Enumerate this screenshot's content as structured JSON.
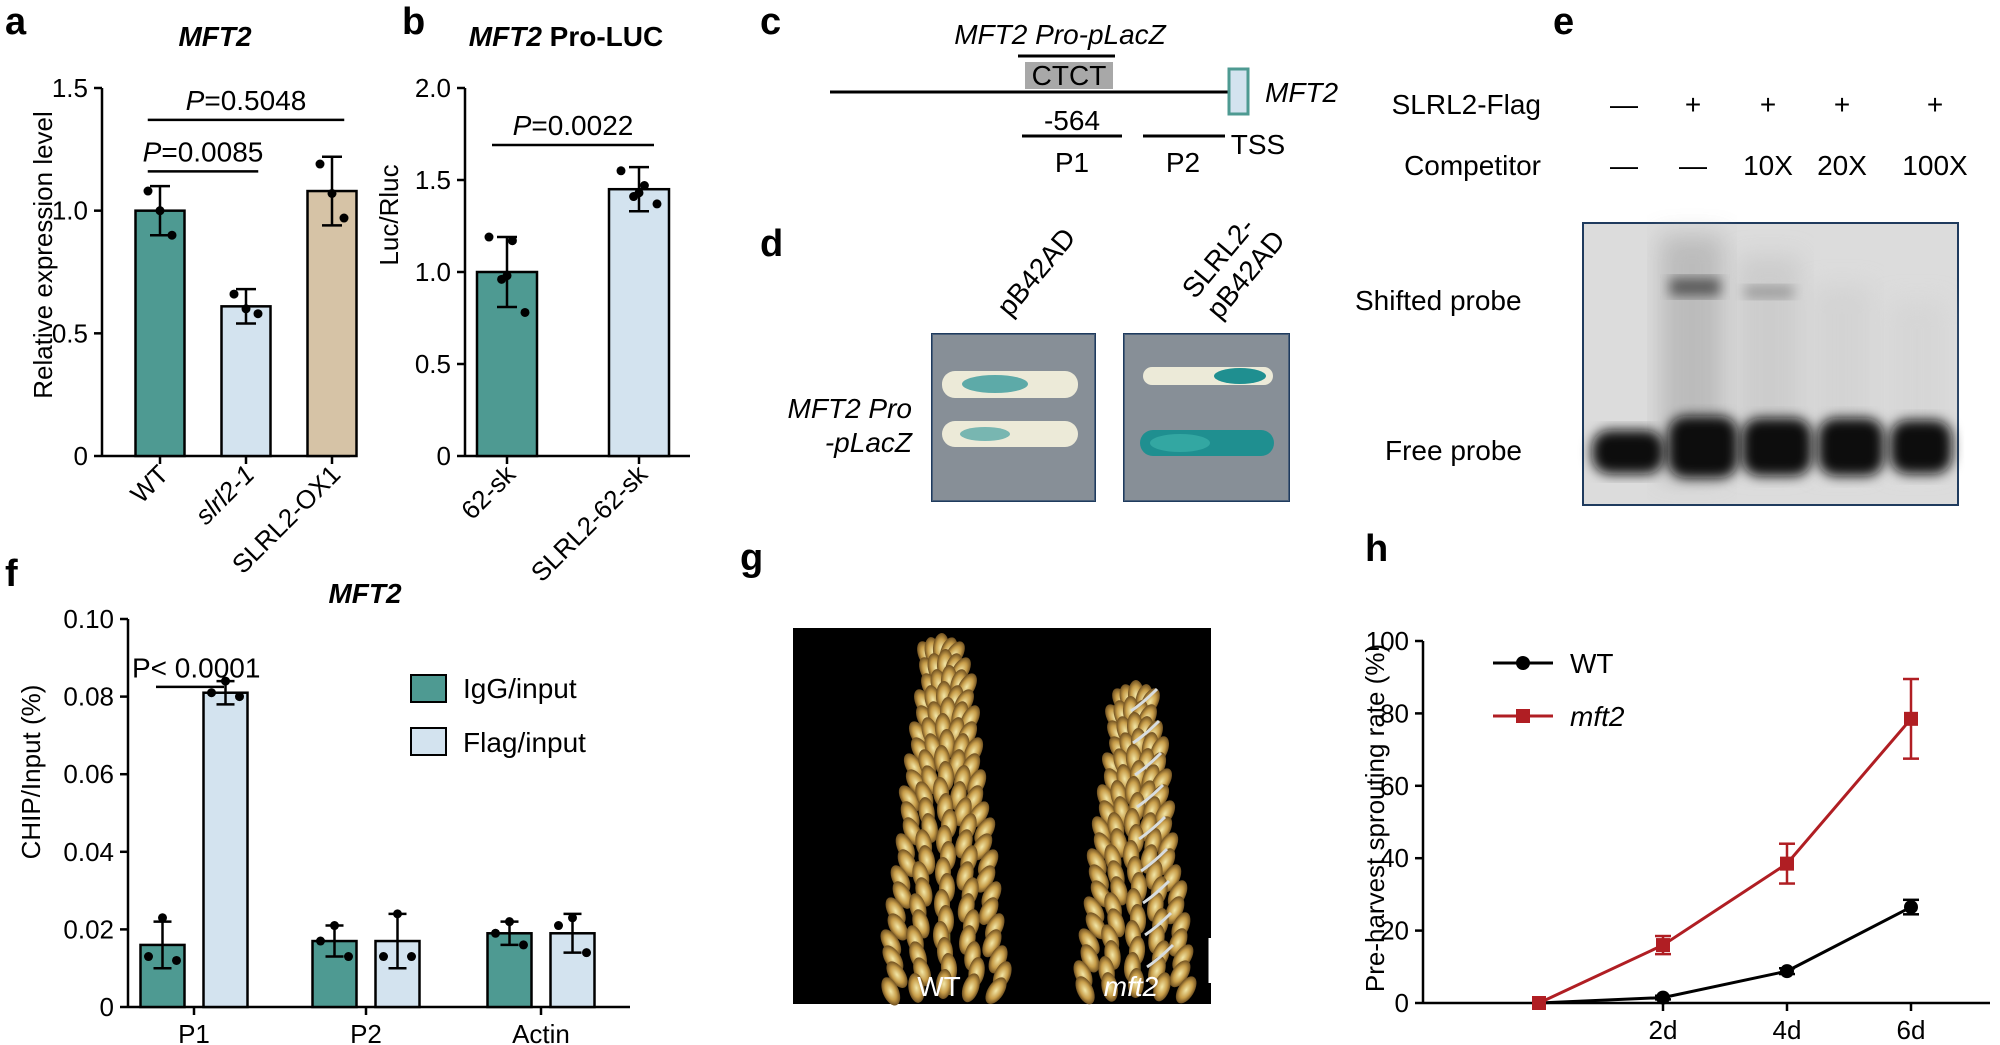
{
  "panels": {
    "a": {
      "label": "a",
      "chart_data": {
        "type": "bar",
        "title": "MFT2",
        "ylabel": "Relative expression level",
        "ylim": [
          0,
          1.5
        ],
        "yticks": [
          "0",
          "0.5",
          "1.0",
          "1.5"
        ],
        "categories": [
          "WT",
          "slrl2-1",
          "SLRL2-OX1"
        ],
        "values": [
          1.0,
          0.61,
          1.08
        ],
        "errors": [
          0.1,
          0.07,
          0.14
        ],
        "points": [
          [
            1.08,
            1.0,
            0.9
          ],
          [
            0.66,
            0.6,
            0.58
          ],
          [
            1.19,
            1.07,
            0.97
          ]
        ],
        "colors": [
          "#4e9a92",
          "#d3e3ef",
          "#d6c3a6"
        ],
        "comparisons": [
          {
            "text": "P=0.0085",
            "from": 0,
            "to": 1,
            "y": 1.16
          },
          {
            "text": "P=0.5048",
            "from": 0,
            "to": 2,
            "y": 1.37
          }
        ]
      }
    },
    "b": {
      "label": "b",
      "chart_data": {
        "type": "bar",
        "title_italic": "MFT2",
        "title_rest": " Pro-LUC",
        "ylabel": "Luc/Rluc",
        "ylim": [
          0,
          2.0
        ],
        "yticks": [
          "0",
          "0.5",
          "1.0",
          "1.5",
          "2.0"
        ],
        "categories": [
          "62-sk",
          "SLRL2-62-sk"
        ],
        "values": [
          1.0,
          1.45
        ],
        "errors": [
          0.19,
          0.12
        ],
        "points": [
          [
            1.19,
            1.17,
            0.98,
            0.96,
            0.78
          ],
          [
            1.55,
            1.47,
            1.43,
            1.41,
            1.37
          ]
        ],
        "colors": [
          "#4e9a92",
          "#d3e3ef"
        ],
        "comparisons": [
          {
            "text": "P=0.0022",
            "from": 0,
            "to": 1,
            "y": 1.69
          }
        ]
      }
    },
    "c": {
      "label": "c",
      "construct": "MFT2 Pro-pLacZ",
      "motif": "CTCT",
      "gene": "MFT2",
      "position": "-564",
      "p1": "P1",
      "p2": "P2",
      "tss": "TSS",
      "motif_color": "#c8102e"
    },
    "d": {
      "label": "d",
      "col1": "pB42AD",
      "col2_line1": "SLRL2-",
      "col2_line2": "pB42AD",
      "row_line1": "MFT2 Pro",
      "row_line2": "-pLacZ"
    },
    "e": {
      "label": "e",
      "row1": "SLRL2-Flag",
      "row2": "Competitor",
      "row1_values": [
        "—",
        "+",
        "+",
        "+",
        "+"
      ],
      "row2_values": [
        "—",
        "—",
        "10X",
        "20X",
        "100X"
      ],
      "shifted": "Shifted probe",
      "free": "Free probe"
    },
    "f": {
      "label": "f",
      "chart_data": {
        "type": "bar",
        "title": "MFT2",
        "ylabel": "CHIP/Input (%)",
        "ylim": [
          0,
          0.1
        ],
        "yticks": [
          "0",
          "0.02",
          "0.04",
          "0.06",
          "0.08",
          "0.10"
        ],
        "categories": [
          "P1",
          "P2",
          "Actin"
        ],
        "series": [
          {
            "name": "IgG/input",
            "values": [
              0.016,
              0.017,
              0.019
            ],
            "errors": [
              0.006,
              0.004,
              0.003
            ],
            "points": [
              [
                0.023,
                0.013,
                0.012
              ],
              [
                0.021,
                0.017,
                0.013
              ],
              [
                0.022,
                0.019,
                0.016
              ]
            ]
          },
          {
            "name": "Flag/input",
            "values": [
              0.081,
              0.017,
              0.019
            ],
            "errors": [
              0.003,
              0.007,
              0.005
            ],
            "points": [
              [
                0.084,
                0.081,
                0.08
              ],
              [
                0.024,
                0.013,
                0.013
              ],
              [
                0.023,
                0.021,
                0.014
              ]
            ]
          }
        ],
        "colors": [
          "#4e9a92",
          "#d3e3ef"
        ],
        "comparisons": [
          {
            "text": "P< 0.0001",
            "y": 0.0875
          }
        ]
      }
    },
    "g": {
      "label": "g",
      "left": "WT",
      "right": "mft2"
    },
    "h": {
      "label": "h",
      "chart_data": {
        "type": "line",
        "ylabel": "Pre-harvest sprouting rate (%)",
        "ylim": [
          0,
          100
        ],
        "yticks": [
          "0",
          "20",
          "40",
          "60",
          "80",
          "100"
        ],
        "x": [
          "",
          "2d",
          "4d",
          "6d"
        ],
        "series": [
          {
            "name": "WT",
            "values": [
              0,
              1.5,
              8.8,
              26.5
            ],
            "errors": [
              0,
              0.5,
              0.8,
              2.0
            ],
            "color": "#000000"
          },
          {
            "name": "mft2",
            "values": [
              0,
              16,
              38.5,
              78.5
            ],
            "errors": [
              0,
              2.5,
              5.5,
              11.0
            ],
            "color": "#b01e23"
          }
        ]
      }
    }
  }
}
